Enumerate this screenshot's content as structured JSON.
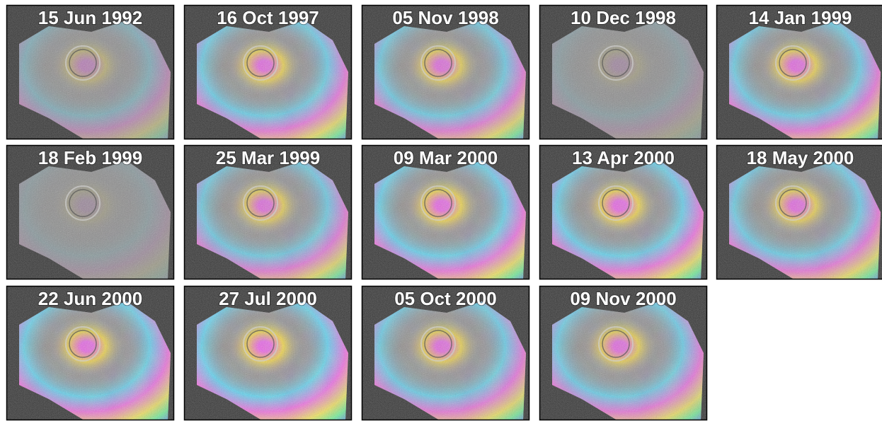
{
  "panels": [
    "15 Jun 1992",
    "16 Oct 1997",
    "05 Nov 1998",
    "10 Dec 1998",
    "14 Jan 1999",
    "18 Feb 1999",
    "25 Mar 1999",
    "09 Mar 2000",
    "13 Apr 2000",
    "18 May 2000",
    "22 Jun 2000",
    "27 Jul 2000",
    "05 Oct 2000",
    "09 Nov 2000"
  ]
}
